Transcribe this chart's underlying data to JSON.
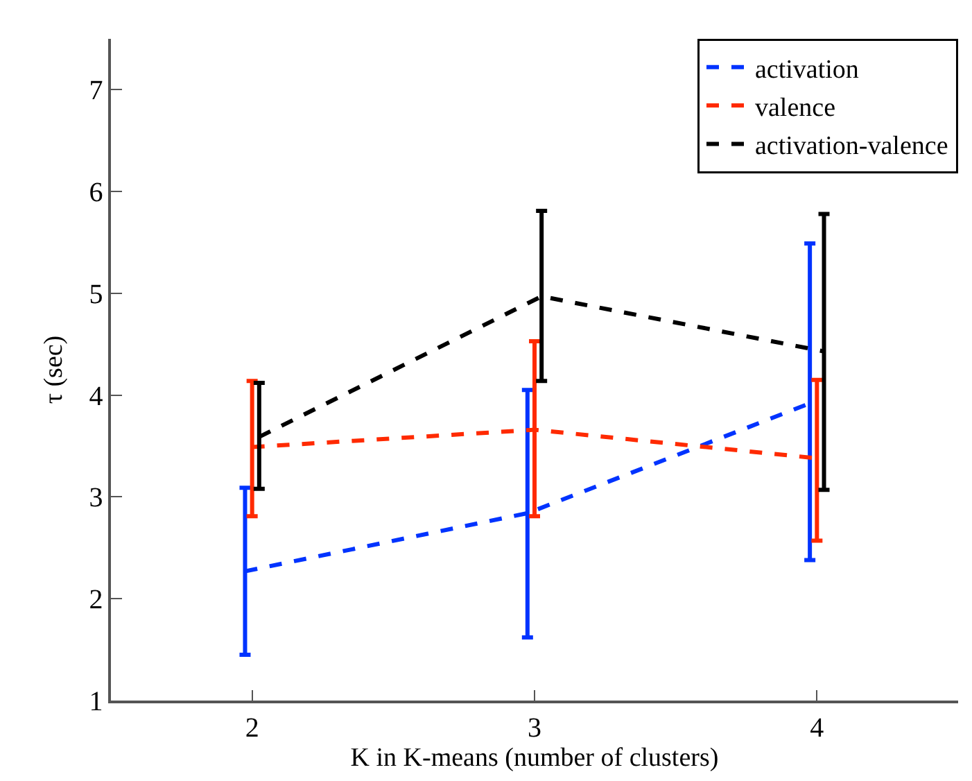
{
  "chart_data": {
    "type": "line",
    "xlabel": "K in K-means (number of clusters)",
    "ylabel": "τ (sec)",
    "xlim": [
      1.5,
      4.5
    ],
    "xticks": [
      2,
      3,
      4
    ],
    "ylim": [
      1,
      7.5
    ],
    "yticks": [
      1,
      2,
      3,
      4,
      5,
      6,
      7
    ],
    "legend": "top right",
    "marker": "none",
    "line_style": "dashed",
    "series": [
      {
        "name": "activation",
        "color": "#0033ff",
        "x": [
          1.975,
          2.975,
          3.975
        ],
        "values": [
          2.27,
          2.84,
          3.92
        ],
        "errors": [
          [
            1.45,
            3.09
          ],
          [
            1.62,
            4.05
          ],
          [
            2.38,
            5.49
          ]
        ]
      },
      {
        "name": "valence",
        "color": "#ff2a00",
        "x": [
          2,
          3,
          4
        ],
        "values": [
          3.49,
          3.66,
          3.38
        ],
        "errors": [
          [
            2.81,
            4.14
          ],
          [
            2.81,
            4.53
          ],
          [
            2.57,
            4.15
          ]
        ]
      },
      {
        "name": "activation-valence",
        "color": "#000000",
        "x": [
          2.025,
          3.025,
          4.025
        ],
        "values": [
          3.59,
          4.97,
          4.43
        ],
        "errors": [
          [
            3.08,
            4.12
          ],
          [
            4.14,
            5.81
          ],
          [
            3.07,
            5.78
          ]
        ]
      }
    ]
  }
}
